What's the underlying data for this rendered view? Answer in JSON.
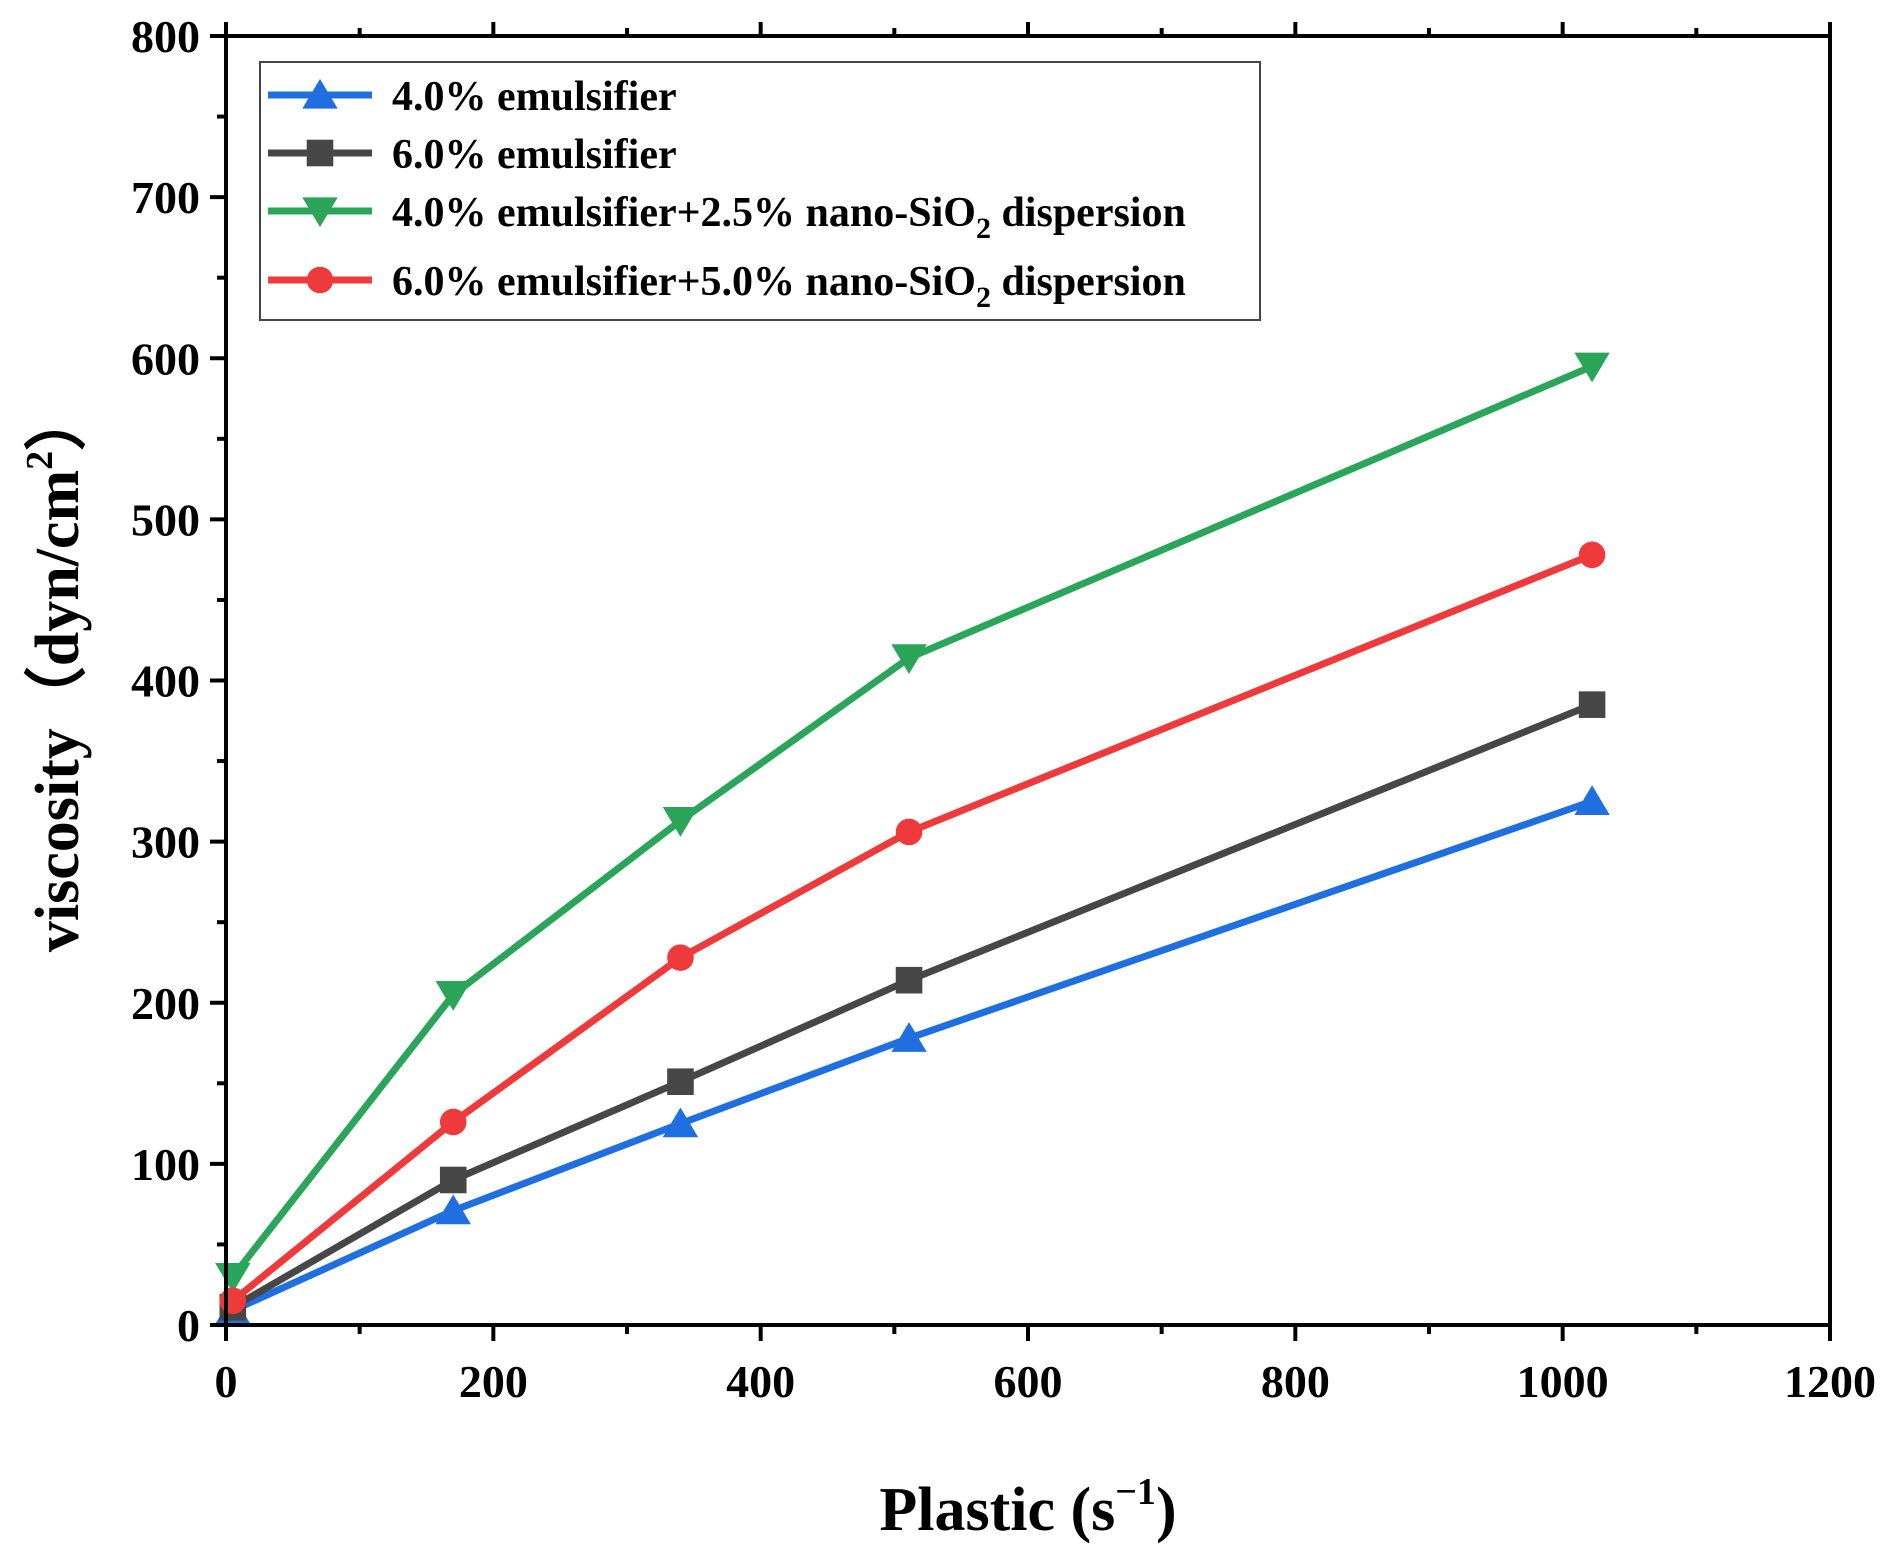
{
  "chart_data": {
    "type": "line",
    "title": "",
    "xlabel": {
      "main": "Plastic (s",
      "sup": "−1",
      "tail": ")"
    },
    "ylabel": {
      "main": "viscosity（dyn/cm",
      "sup": "2",
      "tail": "）"
    },
    "xlim": [
      0,
      1200
    ],
    "ylim": [
      0,
      800
    ],
    "xticks": [
      0,
      200,
      400,
      600,
      800,
      1000,
      1200
    ],
    "yticks": [
      0,
      100,
      200,
      300,
      400,
      500,
      600,
      700,
      800
    ],
    "grid": false,
    "legend_position": "top-left",
    "series": [
      {
        "name": "4.0% emulsifier",
        "legend_parts": [
          [
            "4.0% emulsifier",
            ""
          ]
        ],
        "color": "#1f6fe0",
        "marker": "triangle-up",
        "x": [
          5.1,
          170,
          340,
          511,
          1022
        ],
        "y": [
          9,
          71,
          125,
          178,
          325
        ]
      },
      {
        "name": "6.0% emulsifier",
        "legend_parts": [
          [
            "6.0% emulsifier",
            ""
          ]
        ],
        "color": "#474747",
        "marker": "square",
        "x": [
          5.1,
          170,
          340,
          511,
          1022
        ],
        "y": [
          11,
          90,
          151,
          214,
          385
        ]
      },
      {
        "name": "4.0% emulsifier+2.5% nano-SiO2 dispersion",
        "legend_parts": [
          [
            "4.0% emulsifier+2.5% nano-SiO",
            ""
          ],
          [
            "2",
            "sub"
          ],
          [
            " dispersion",
            ""
          ]
        ],
        "color": "#2aa55a",
        "marker": "triangle-down",
        "x": [
          5.1,
          170,
          340,
          511,
          1022
        ],
        "y": [
          30,
          205,
          313,
          414,
          595
        ]
      },
      {
        "name": "6.0% emulsifier+5.0% nano-SiO2 dispersion",
        "legend_parts": [
          [
            "6.0% emulsifier+5.0% nano-SiO",
            ""
          ],
          [
            "2",
            "sub"
          ],
          [
            " dispersion",
            ""
          ]
        ],
        "color": "#ee3a3a",
        "marker": "circle",
        "x": [
          5.1,
          170,
          340,
          511,
          1022
        ],
        "y": [
          15,
          126,
          228,
          306,
          478
        ]
      }
    ]
  }
}
